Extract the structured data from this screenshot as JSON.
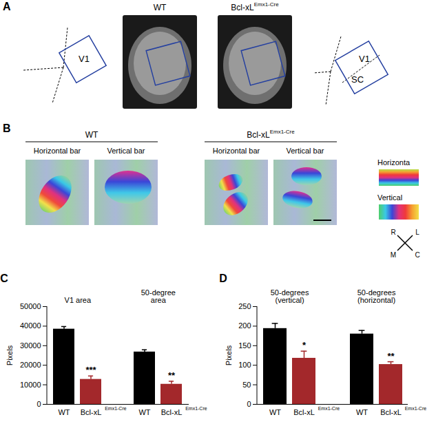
{
  "figure": {
    "panel_A": {
      "letter": "A",
      "titles": [
        "WT",
        "Bcl-xL"
      ],
      "title_superscripts": [
        null,
        "Emx1-Cre"
      ],
      "left_schematic": [
        "V1"
      ],
      "right_schematic": [
        "V1",
        "SC"
      ]
    },
    "panel_B": {
      "letter": "B",
      "group_titles": [
        "WT",
        "Bcl-xL"
      ],
      "group_title_superscripts": [
        null,
        "Emx1-Cre"
      ],
      "map_titles": [
        "Horizontal bar",
        "Vertical bar",
        "Horizontal bar",
        "Vertical bar"
      ],
      "key_titles": [
        "Horizonta",
        "Vertical"
      ],
      "compass": [
        "R",
        "L",
        "M",
        "C"
      ]
    }
  },
  "chart_data": [
    {
      "panel": "C",
      "type": "bar",
      "ylabel": "Pixels",
      "groups": [
        "V1 area",
        "V1 area",
        "50-degree area",
        "50-degree area"
      ],
      "categories": [
        "WT",
        "Bcl-xL",
        "WT",
        "Bcl-xL"
      ],
      "category_superscripts": [
        null,
        "Emx1-Cre",
        null,
        "Emx1-Cre"
      ],
      "values": [
        38500,
        12800,
        26800,
        10300
      ],
      "errors": [
        1300,
        1700,
        1100,
        1500
      ],
      "significance": [
        null,
        "***",
        null,
        "**"
      ],
      "colors": [
        "#000000",
        "#a3282b",
        "#000000",
        "#a3282b"
      ],
      "ylim": [
        0,
        50000
      ],
      "yticks": [
        0,
        10000,
        20000,
        30000,
        40000,
        50000
      ]
    },
    {
      "panel": "D",
      "type": "bar",
      "ylabel": "Pixels",
      "groups": [
        "50-degrees (vertical)",
        "50-degrees (vertical)",
        "50-degrees (horizontal)",
        "50-degrees (horizontal)"
      ],
      "categories": [
        "WT",
        "Bcl-xL",
        "WT",
        "Bcl-xL"
      ],
      "category_superscripts": [
        null,
        "Emx1-Cre",
        null,
        "Emx1-Cre"
      ],
      "values": [
        194,
        118,
        180,
        102
      ],
      "errors": [
        13,
        18,
        9,
        7
      ],
      "significance": [
        null,
        "*",
        null,
        "**"
      ],
      "colors": [
        "#000000",
        "#a3282b",
        "#000000",
        "#a3282b"
      ],
      "ylim": [
        0,
        250
      ],
      "yticks": [
        0,
        50,
        100,
        150,
        200,
        250
      ]
    }
  ]
}
